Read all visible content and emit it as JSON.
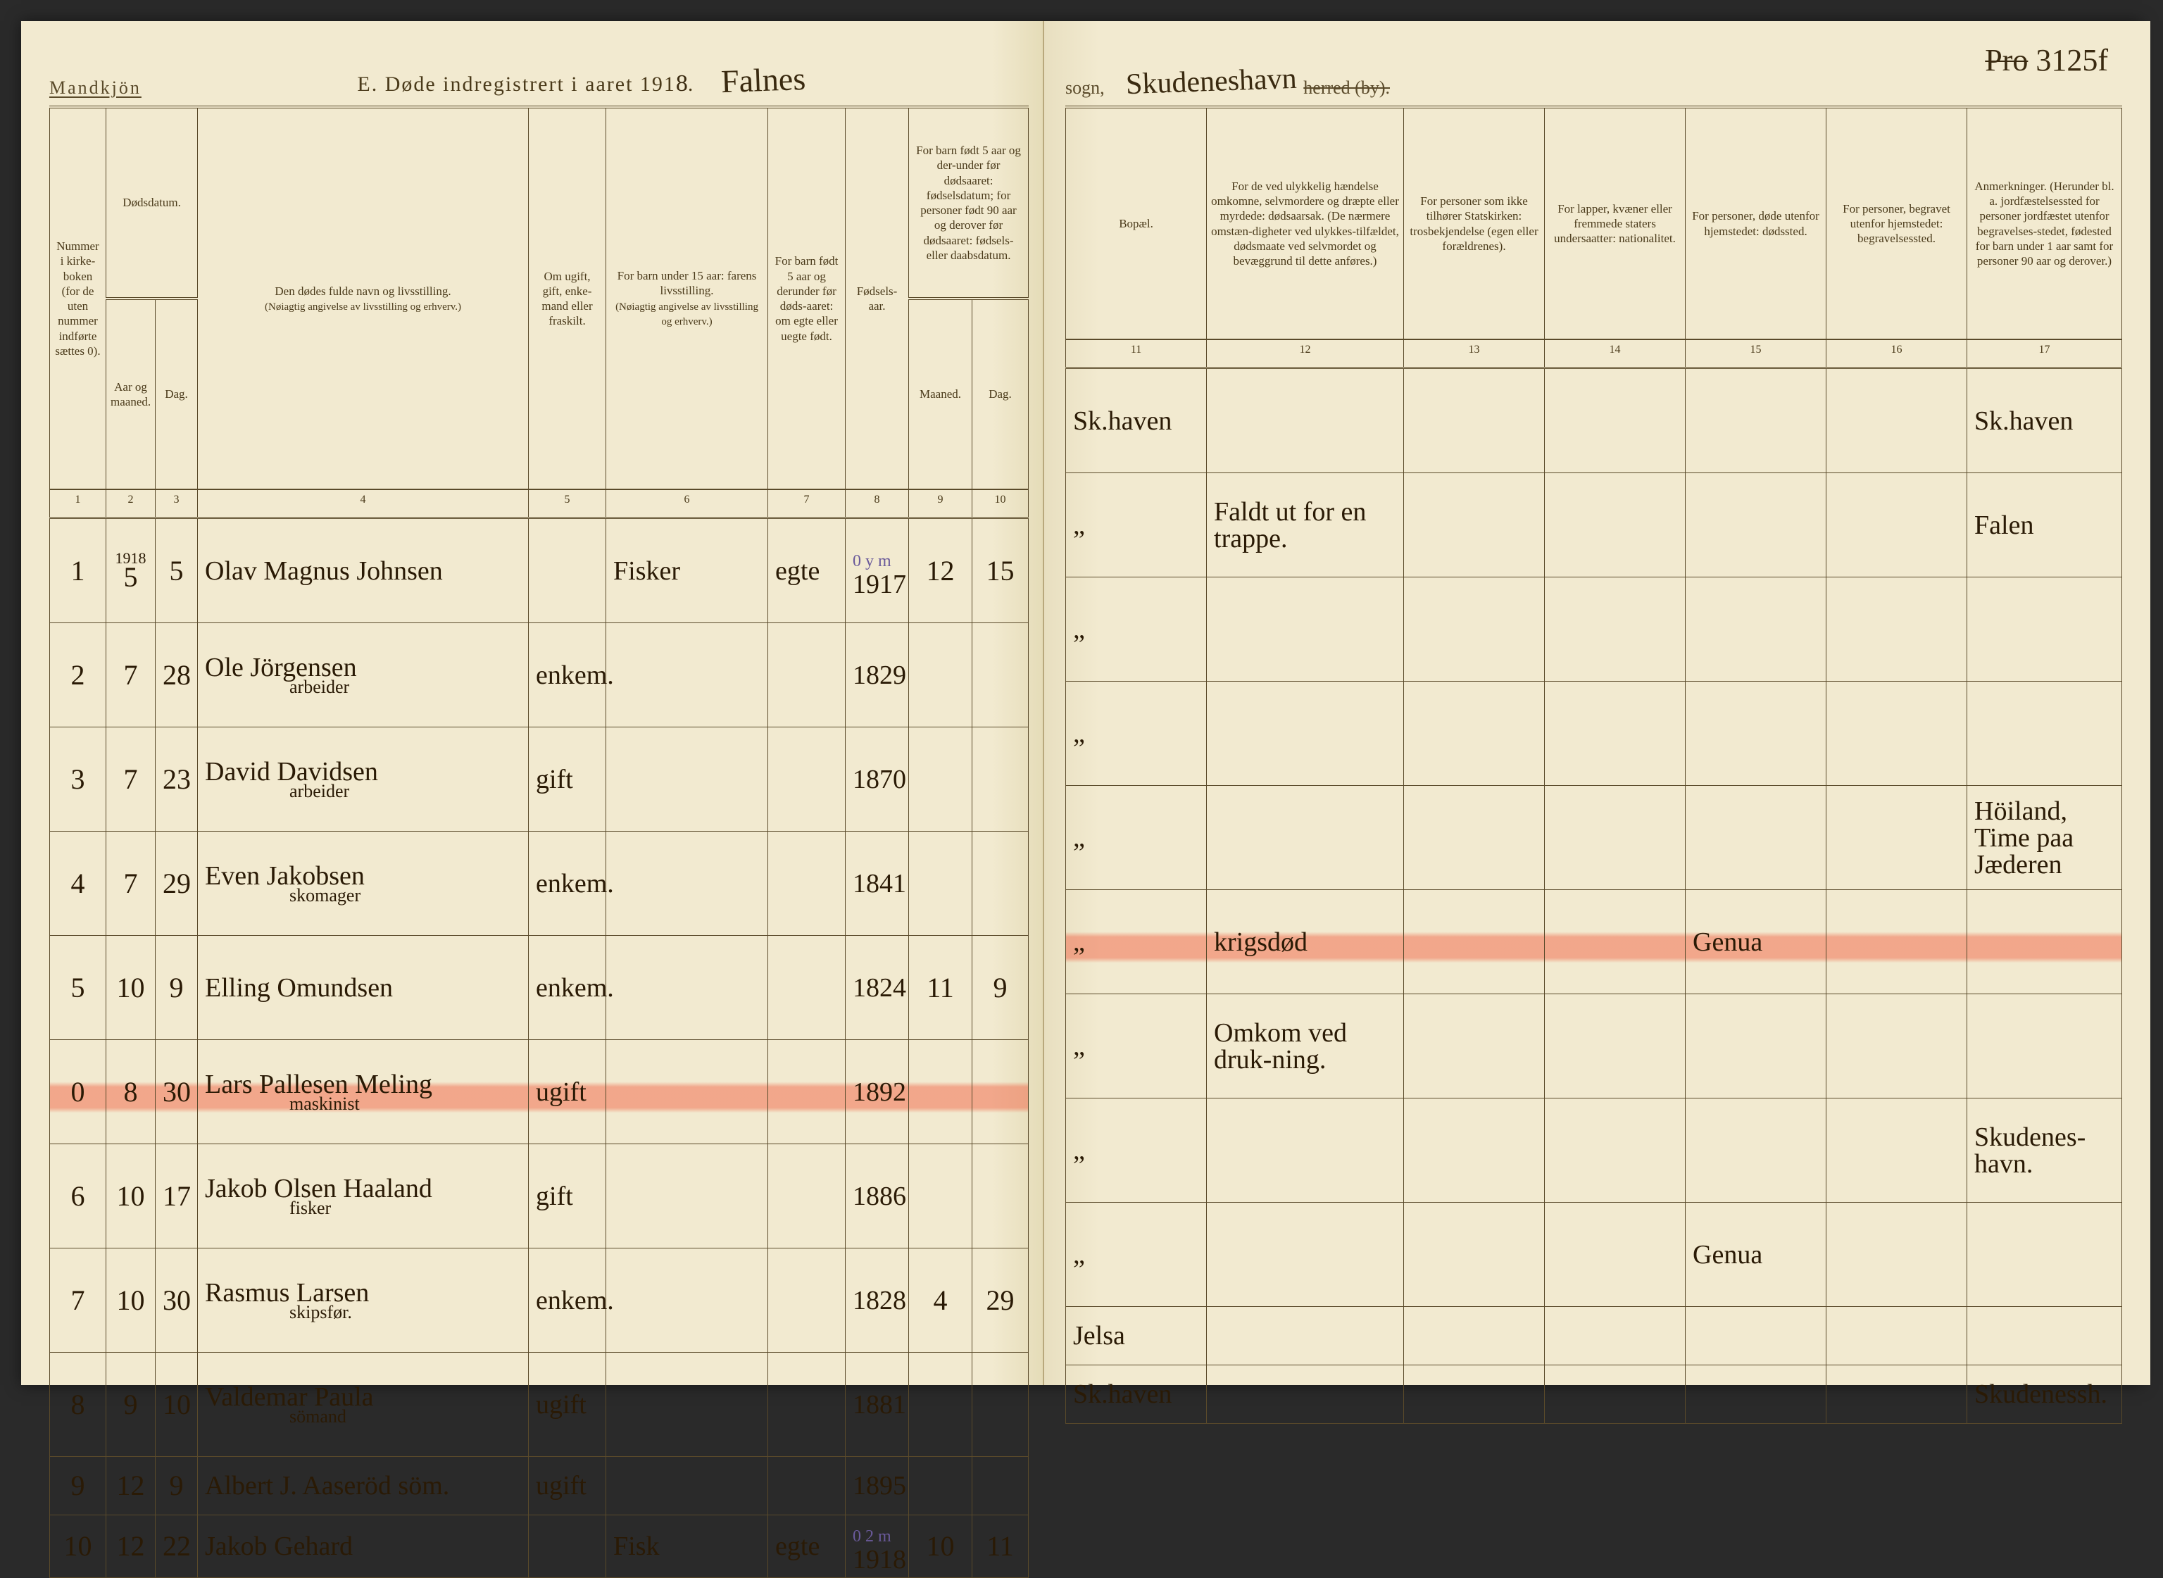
{
  "header": {
    "gender": "Mandkjön",
    "title_prefix": "E.  Døde indregistrert i aaret 191",
    "year_digit": "8",
    "parish_script": "Falnes",
    "sogn_label": "sogn,",
    "city_script": "Skudeneshavn",
    "herred_label": "herred (by).",
    "page_number_struck": "Pro",
    "page_number": "3125f"
  },
  "columns_left": {
    "c1": "Nummer i kirke-boken (for de uten nummer indførte sættes 0).",
    "c2": "Dødsdatum.",
    "c2a": "Aar og maaned.",
    "c2b": "Dag.",
    "c4_main": "Den dødes fulde navn og livsstilling.",
    "c4_sub": "(Nøiagtig angivelse av livsstilling og erhverv.)",
    "c5": "Om ugift, gift, enke-mand eller fraskilt.",
    "c6_main": "For barn under 15 aar: farens livsstilling.",
    "c6_sub": "(Nøiagtig angivelse av livsstilling og erhverv.)",
    "c7": "For barn født 5 aar og derunder før døds-aaret: om egte eller uegte født.",
    "c8": "Fødsels-aar.",
    "c9": "For barn født 5 aar og der-under før dødsaaret: fødselsdatum; for personer født 90 aar og derover før dødsaaret: fødsels- eller daabsdatum.",
    "c9a": "Maaned.",
    "c9b": "Dag."
  },
  "columns_right": {
    "c11": "Bopæl.",
    "c12": "For de ved ulykkelig hændelse omkomne, selvmordere og dræpte eller myrdede: dødsaarsak. (De nærmere omstæn-digheter ved ulykkes-tilfældet, dødsmaate ved selvmordet og bevæggrund til dette anføres.)",
    "c13": "For personer som ikke tilhører Statskirken: trosbekjendelse (egen eller forældrenes).",
    "c14": "For lapper, kvæner eller fremmede staters undersaatter: nationalitet.",
    "c15": "For personer, døde utenfor hjemstedet: dødssted.",
    "c16": "For personer, begravet utenfor hjemstedet: begravelsessted.",
    "c17": "Anmerkninger. (Herunder bl. a. jordfæstelsessted for personer jordfæstet utenfor begravelses-stedet, fødested for barn under 1 aar samt for personer 90 aar og derover.)"
  },
  "colnums_left": [
    "1",
    "2",
    "3",
    "4",
    "5",
    "6",
    "7",
    "8",
    "9",
    "10"
  ],
  "colnums_right": [
    "11",
    "12",
    "13",
    "14",
    "15",
    "16",
    "17"
  ],
  "year_over": "1918",
  "rows": [
    {
      "no": "1",
      "mon": "5",
      "day": "5",
      "name": "Olav Magnus Johnsen",
      "sub": "",
      "status": "",
      "father": "Fisker",
      "egte": "egte",
      "faar": "1917",
      "faar_note": "0 y m",
      "fm": "12",
      "fd": "15",
      "bopel": "Sk.haven",
      "cause": "",
      "tros": "",
      "nat": "",
      "dsted": "",
      "bsted": "",
      "anm": "Sk.haven",
      "hl": false,
      "short": false
    },
    {
      "no": "2",
      "mon": "7",
      "day": "28",
      "name": "Ole Jörgensen",
      "sub": "arbeider",
      "status": "enkem.",
      "father": "",
      "egte": "",
      "faar": "1829",
      "faar_note": "",
      "fm": "",
      "fd": "",
      "bopel": "„",
      "cause": "Faldt ut for en trappe.",
      "tros": "",
      "nat": "",
      "dsted": "",
      "bsted": "",
      "anm": "Falen",
      "hl": false,
      "short": false
    },
    {
      "no": "3",
      "mon": "7",
      "day": "23",
      "name": "David Davidsen",
      "sub": "arbeider",
      "status": "gift",
      "father": "",
      "egte": "",
      "faar": "1870",
      "faar_note": "",
      "fm": "",
      "fd": "",
      "bopel": "„",
      "cause": "",
      "tros": "",
      "nat": "",
      "dsted": "",
      "bsted": "",
      "anm": "",
      "hl": false,
      "short": false
    },
    {
      "no": "4",
      "mon": "7",
      "day": "29",
      "name": "Even Jakobsen",
      "sub": "skomager",
      "status": "enkem.",
      "father": "",
      "egte": "",
      "faar": "1841",
      "faar_note": "",
      "fm": "",
      "fd": "",
      "bopel": "„",
      "cause": "",
      "tros": "",
      "nat": "",
      "dsted": "",
      "bsted": "",
      "anm": "",
      "hl": false,
      "short": false
    },
    {
      "no": "5",
      "mon": "10",
      "day": "9",
      "name": "Elling Omundsen",
      "sub": "",
      "status": "enkem.",
      "father": "",
      "egte": "",
      "faar": "1824",
      "faar_note": "",
      "fm": "11",
      "fd": "9",
      "bopel": "„",
      "cause": "",
      "tros": "",
      "nat": "",
      "dsted": "",
      "bsted": "",
      "anm": "Höiland, Time paa Jæderen",
      "hl": false,
      "short": false
    },
    {
      "no": "0",
      "mon": "8",
      "day": "30",
      "name": "Lars Pallesen Meling",
      "sub": "maskinist",
      "status": "ugift",
      "father": "",
      "egte": "",
      "faar": "1892",
      "faar_note": "",
      "fm": "",
      "fd": "",
      "bopel": "„",
      "cause": "krigsdød",
      "tros": "",
      "nat": "",
      "dsted": "Genua",
      "bsted": "",
      "anm": "",
      "hl": true,
      "short": false
    },
    {
      "no": "6",
      "mon": "10",
      "day": "17",
      "name": "Jakob Olsen Haaland",
      "sub": "fisker",
      "status": "gift",
      "father": "",
      "egte": "",
      "faar": "1886",
      "faar_note": "",
      "fm": "",
      "fd": "",
      "bopel": "„",
      "cause": "Omkom ved druk-ning.",
      "tros": "",
      "nat": "",
      "dsted": "",
      "bsted": "",
      "anm": "",
      "hl": false,
      "short": false
    },
    {
      "no": "7",
      "mon": "10",
      "day": "30",
      "name": "Rasmus Larsen",
      "sub": "skipsfør.",
      "status": "enkem.",
      "father": "",
      "egte": "",
      "faar": "1828",
      "faar_note": "",
      "fm": "4",
      "fd": "29",
      "bopel": "„",
      "cause": "",
      "tros": "",
      "nat": "",
      "dsted": "",
      "bsted": "",
      "anm": "Skudenes-havn.",
      "hl": false,
      "short": false
    },
    {
      "no": "8",
      "mon": "9",
      "day": "10",
      "name": "Valdemar Paula",
      "sub": "sömand",
      "status": "ugift",
      "father": "",
      "egte": "",
      "faar": "1881",
      "faar_note": "",
      "fm": "",
      "fd": "",
      "bopel": "„",
      "cause": "",
      "tros": "",
      "nat": "",
      "dsted": "Genua",
      "bsted": "",
      "anm": "",
      "hl": false,
      "short": false
    },
    {
      "no": "9",
      "mon": "12",
      "day": "9",
      "name": "Albert J. Aaseröd söm.",
      "sub": "",
      "status": "ugift",
      "father": "",
      "egte": "",
      "faar": "1895",
      "faar_note": "",
      "fm": "",
      "fd": "",
      "bopel": "Jelsa",
      "cause": "",
      "tros": "",
      "nat": "",
      "dsted": "",
      "bsted": "",
      "anm": "",
      "hl": false,
      "short": true
    },
    {
      "no": "10",
      "mon": "12",
      "day": "22",
      "name": "Jakob Gehard",
      "sub": "",
      "status": "",
      "father": "Fisk",
      "egte": "egte",
      "faar": "1918",
      "faar_note": "0 2 m",
      "fm": "10",
      "fd": "11",
      "bopel": "Sk.haven",
      "cause": "",
      "tros": "",
      "nat": "",
      "dsted": "",
      "bsted": "",
      "anm": "Skudenessh.",
      "hl": false,
      "short": true
    }
  ],
  "colors": {
    "paper": "#f2ead0",
    "ink": "#4a3a1a",
    "script": "#2a1a05",
    "rule": "#5a4a2a",
    "highlight": "#f06446"
  }
}
